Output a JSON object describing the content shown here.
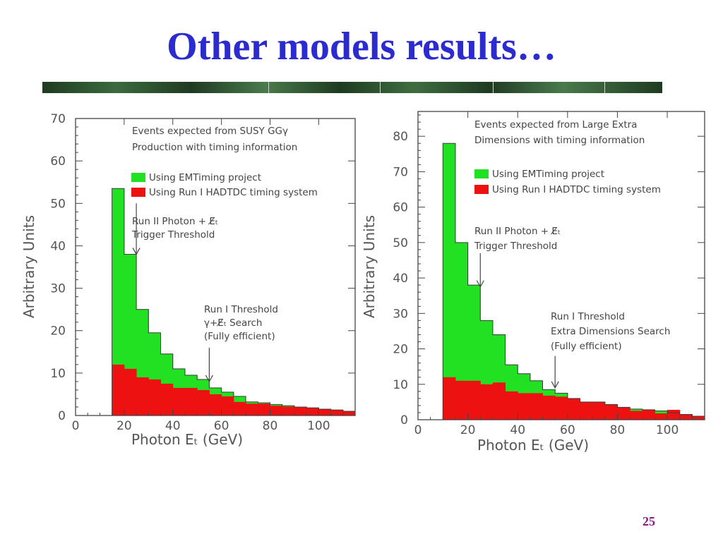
{
  "slide": {
    "title": "Other models results…",
    "page_number": "25"
  },
  "colors": {
    "title": "#2b2bd0",
    "green": "#22e022",
    "red": "#ee1111",
    "axis": "#555555",
    "text": "#555555"
  },
  "chart_data": [
    {
      "type": "area",
      "ylabel": "Arbitrary Units",
      "xlabel": "Photon Eₜ (GeV)",
      "xlim": [
        0,
        115
      ],
      "ylim": [
        0,
        70
      ],
      "x_ticks": [
        0,
        20,
        40,
        60,
        80,
        100
      ],
      "y_ticks": [
        0,
        10,
        20,
        30,
        40,
        50,
        60,
        70
      ],
      "annotation_title": [
        "Events expected from SUSY GGγ",
        "Production with timing information"
      ],
      "legend": [
        {
          "label": "Using EMTiming project",
          "color": "#22e022"
        },
        {
          "label": "Using Run I HADTDC timing system",
          "color": "#ee1111"
        }
      ],
      "annotations": [
        {
          "lines": [
            "Run II Photon + E̸ₜ",
            "Trigger Threshold"
          ],
          "arrow_x": 25,
          "arrow_from": 50,
          "arrow_to": 38
        },
        {
          "lines": [
            "Run I Threshold",
            "γ+E̸ₜ Search",
            "(Fully efficient)"
          ],
          "arrow_x": 55,
          "arrow_from": 16,
          "arrow_to": 8
        }
      ],
      "bin_edges": [
        15,
        20,
        25,
        30,
        35,
        40,
        45,
        50,
        55,
        60,
        65,
        70,
        75,
        80,
        85,
        90,
        95,
        100,
        105,
        110,
        115
      ],
      "series": [
        {
          "name": "Using EMTiming project",
          "values": [
            53.5,
            38,
            25,
            19.5,
            14.5,
            11,
            9.5,
            8.5,
            6.5,
            5.5,
            4.5,
            3.2,
            3,
            2.6,
            2.3,
            2,
            1.8,
            1.5,
            1.3,
            1
          ]
        },
        {
          "name": "Using Run I HADTDC timing system",
          "values": [
            12,
            11,
            9,
            8.5,
            7.5,
            6.5,
            6.5,
            6,
            5,
            4.5,
            3.2,
            2.8,
            2.8,
            2.3,
            2.1,
            2,
            1.8,
            1.5,
            1.3,
            1
          ]
        }
      ]
    },
    {
      "type": "area",
      "ylabel": "Arbitrary Units",
      "xlabel": "Photon Eₜ (GeV)",
      "xlim": [
        0,
        115
      ],
      "ylim": [
        0,
        87
      ],
      "x_ticks": [
        0,
        20,
        40,
        60,
        80,
        100
      ],
      "y_ticks": [
        0,
        10,
        20,
        30,
        40,
        50,
        60,
        70,
        80
      ],
      "annotation_title": [
        "Events expected from Large Extra",
        "Dimensions with timing information"
      ],
      "legend": [
        {
          "label": "Using EMTiming project",
          "color": "#22e022"
        },
        {
          "label": "Using Run I HADTDC timing system",
          "color": "#ee1111"
        }
      ],
      "annotations": [
        {
          "lines": [
            "Run II Photon + E̸ₜ",
            "Trigger Threshold"
          ],
          "arrow_x": 25,
          "arrow_from": 47,
          "arrow_to": 37.5
        },
        {
          "lines": [
            "Run I Threshold",
            "Extra Dimensions Search",
            "(Fully efficient)"
          ],
          "arrow_x": 55,
          "arrow_from": 18,
          "arrow_to": 9
        }
      ],
      "bin_edges": [
        10,
        15,
        20,
        25,
        30,
        35,
        40,
        45,
        50,
        55,
        60,
        65,
        70,
        75,
        80,
        85,
        90,
        95,
        100,
        105,
        110,
        115
      ],
      "series": [
        {
          "name": "Using EMTiming project",
          "values": [
            78,
            50,
            38,
            28,
            24,
            15.5,
            13,
            11,
            8.5,
            7.5,
            6,
            5,
            5,
            4.3,
            3.5,
            3,
            2.8,
            2.5,
            2,
            1.5,
            1
          ]
        },
        {
          "name": "Using Run I HADTDC timing system",
          "values": [
            12,
            11,
            11,
            10,
            10.5,
            8,
            7.5,
            7.5,
            6.8,
            6.5,
            6,
            5,
            5,
            4.3,
            3.5,
            2.5,
            2.8,
            1.8,
            2.8,
            1.5,
            1
          ]
        }
      ]
    }
  ]
}
